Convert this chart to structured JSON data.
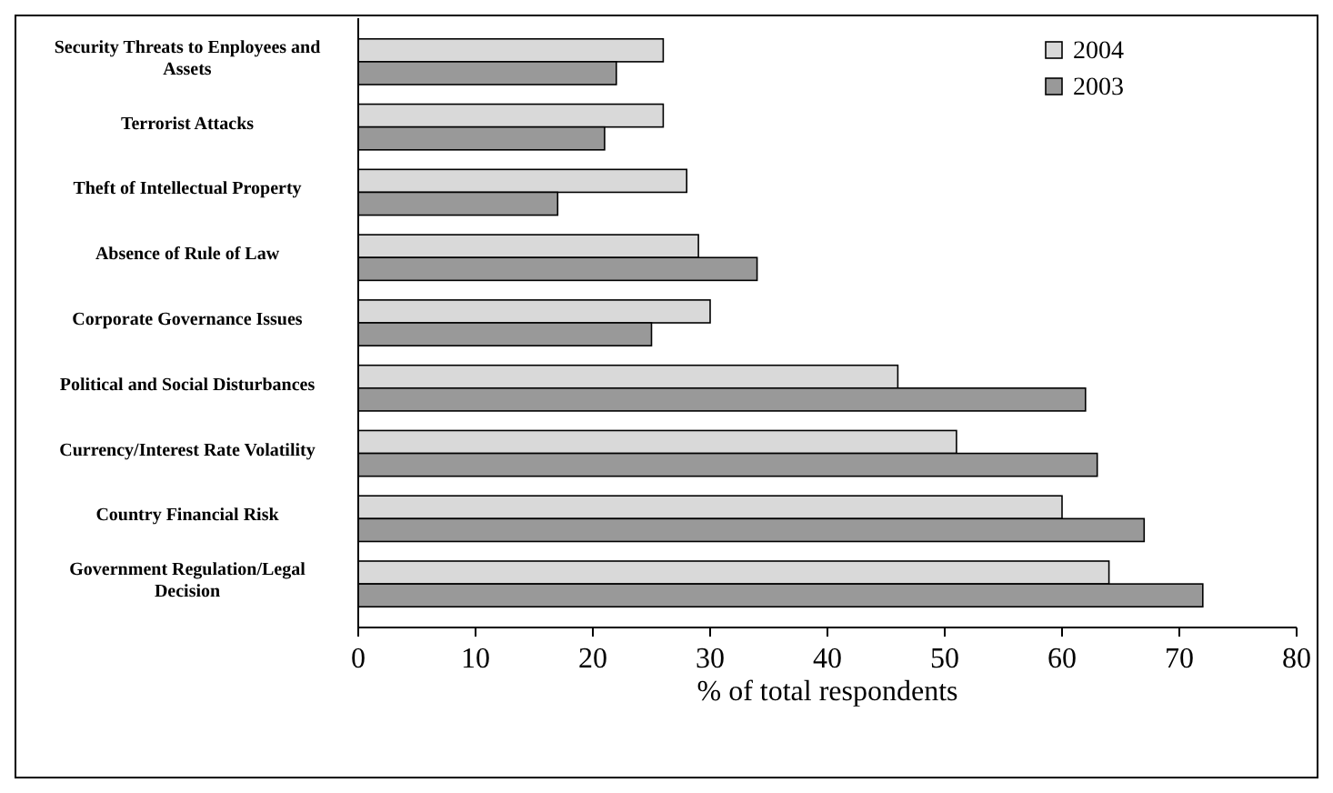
{
  "chart_data": {
    "type": "bar",
    "orientation": "horizontal",
    "xlabel": "% of total respondents",
    "categories": [
      "Security Threats to Enployees and Assets",
      "Terrorist Attacks",
      "Theft of Intellectual Property",
      "Absence of Rule of Law",
      "Corporate Governance Issues",
      "Political and Social Disturbances",
      "Currency/Interest Rate Volatility",
      "Country Financial Risk",
      "Government Regulation/Legal Decision"
    ],
    "series": [
      {
        "name": "2004",
        "color": "#d9d9d9",
        "values": [
          26,
          26,
          28,
          29,
          30,
          46,
          51,
          60,
          64
        ]
      },
      {
        "name": "2003",
        "color": "#999999",
        "values": [
          22,
          21,
          17,
          34,
          25,
          62,
          63,
          67,
          72
        ]
      }
    ],
    "xlim": [
      0,
      80
    ],
    "xticks": [
      0,
      10,
      20,
      30,
      40,
      50,
      60,
      70,
      80
    ],
    "grid": false,
    "legend": "top right"
  }
}
